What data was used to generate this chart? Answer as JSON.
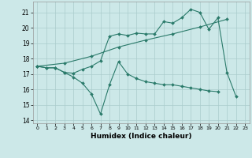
{
  "title": "",
  "xlabel": "Humidex (Indice chaleur)",
  "bg_color": "#cce8e8",
  "grid_color": "#aacccc",
  "line_color": "#2a7a6a",
  "xlim": [
    -0.5,
    23.5
  ],
  "ylim": [
    13.8,
    21.7
  ],
  "xticks": [
    0,
    1,
    2,
    3,
    4,
    5,
    6,
    7,
    8,
    9,
    10,
    11,
    12,
    13,
    14,
    15,
    16,
    17,
    18,
    19,
    20,
    21,
    22,
    23
  ],
  "yticks": [
    14,
    15,
    16,
    17,
    18,
    19,
    20,
    21
  ],
  "line1_x": [
    0,
    1,
    2,
    3,
    4,
    5,
    6,
    7,
    8,
    9,
    10,
    11,
    12,
    13,
    14,
    15,
    16,
    17,
    18,
    19,
    20,
    21,
    22
  ],
  "line1_y": [
    17.5,
    17.4,
    17.4,
    17.1,
    17.05,
    17.3,
    17.5,
    17.85,
    19.45,
    19.6,
    19.5,
    19.65,
    19.6,
    19.6,
    20.4,
    20.3,
    20.65,
    21.2,
    21.0,
    19.9,
    20.65,
    17.1,
    15.55
  ],
  "line2_x": [
    0,
    1,
    2,
    3,
    4,
    5,
    6,
    7,
    8,
    9,
    10,
    11,
    12,
    13,
    14,
    15,
    16,
    17,
    18,
    19,
    20
  ],
  "line2_y": [
    17.5,
    17.4,
    17.4,
    17.1,
    16.8,
    16.4,
    15.7,
    14.4,
    16.3,
    17.8,
    17.0,
    16.7,
    16.5,
    16.4,
    16.3,
    16.3,
    16.2,
    16.1,
    16.0,
    15.9,
    15.85
  ],
  "line3_x": [
    0,
    3,
    6,
    9,
    12,
    15,
    18,
    21
  ],
  "line3_y": [
    17.5,
    17.7,
    18.15,
    18.75,
    19.2,
    19.6,
    20.05,
    20.55
  ]
}
